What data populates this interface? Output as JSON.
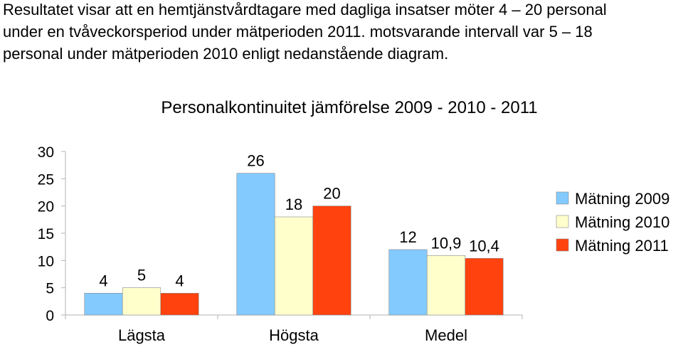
{
  "intro": {
    "lines": [
      "Resultatet visar att en hemtjänstvårdtagare med dagliga insatser möter 4 – 20 personal",
      "under en tvåveckorsperiod under mätperioden 2011. motsvarande intervall var 5 – 18",
      "personal under mätperioden 2010 enligt nedanstående diagram."
    ]
  },
  "chart_data": {
    "type": "bar",
    "title": "Personalkontinuitet jämförelse 2009 - 2010 - 2011",
    "xlabel": "",
    "ylabel": "",
    "categories": [
      "Lägsta",
      "Högsta",
      "Medel"
    ],
    "series": [
      {
        "name": "Mätning 2009",
        "color": "#83caff",
        "values": [
          4,
          26,
          12
        ],
        "labels": [
          "4",
          "26",
          "12"
        ]
      },
      {
        "name": "Mätning 2010",
        "color": "#ffffcc",
        "values": [
          5,
          18,
          10.9
        ],
        "labels": [
          "5",
          "18",
          "10,9"
        ]
      },
      {
        "name": "Mätning 2011",
        "color": "#ff420e",
        "values": [
          4,
          20,
          10.4
        ],
        "labels": [
          "4",
          "20",
          "10,4"
        ]
      }
    ],
    "ylim": [
      0,
      30
    ],
    "yticks": [
      0,
      5,
      10,
      15,
      20,
      25,
      30
    ],
    "grid": false,
    "legend_position": "right"
  }
}
